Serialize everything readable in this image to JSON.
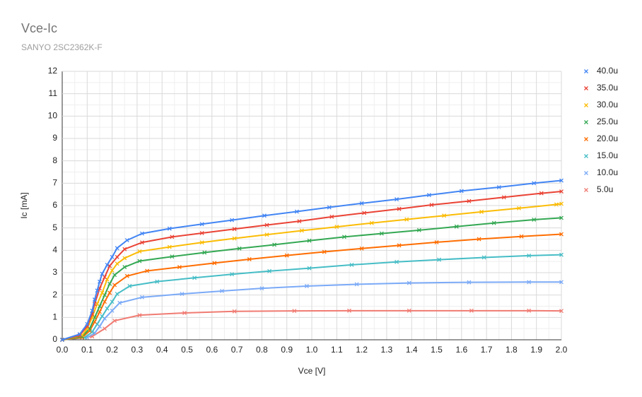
{
  "chart_data": {
    "type": "scatter",
    "title": "Vce-Ic",
    "subtitle": "SANYO 2SC2362K-F",
    "x_label": "Vce [V]",
    "y_label": "Ic [mA]",
    "xlim": [
      0,
      2
    ],
    "ylim": [
      0,
      12
    ],
    "xticks": [
      {
        "value": 0,
        "label": "0.0"
      },
      0.1,
      0.2,
      0.3,
      0.4,
      0.5,
      0.6,
      0.7,
      0.8,
      0.9,
      {
        "value": 1,
        "label": "1.0"
      },
      1.1,
      1.2,
      1.3,
      1.4,
      1.5,
      1.6,
      1.7,
      1.8,
      1.9,
      {
        "value": 2,
        "label": "2.0"
      }
    ],
    "yticks": [
      0,
      1,
      2,
      3,
      4,
      5,
      6,
      7,
      8,
      9,
      10,
      11,
      12
    ],
    "grid": true,
    "minor_grid": true,
    "legend": "right",
    "series": [
      {
        "name": "40.0u",
        "color": "#4285f4",
        "x": [
          0,
          0.07,
          0.1,
          0.12,
          0.13,
          0.14,
          0.15,
          0.16,
          0.18,
          0.2,
          0.22,
          0.26,
          0.32,
          0.43,
          0.56,
          0.68,
          0.81,
          0.94,
          1.07,
          1.2,
          1.34,
          1.47,
          1.6,
          1.75,
          1.89,
          2.0
        ],
        "values": [
          0,
          0.25,
          0.7,
          1.3,
          1.8,
          2.2,
          2.6,
          2.95,
          3.35,
          3.7,
          4.1,
          4.45,
          4.75,
          4.97,
          5.17,
          5.35,
          5.55,
          5.73,
          5.92,
          6.1,
          6.28,
          6.47,
          6.65,
          6.82,
          7.0,
          7.12
        ]
      },
      {
        "name": "35.0u",
        "color": "#ea4335",
        "x": [
          0,
          0.07,
          0.1,
          0.12,
          0.13,
          0.15,
          0.17,
          0.19,
          0.22,
          0.25,
          0.32,
          0.44,
          0.56,
          0.69,
          0.82,
          0.95,
          1.08,
          1.21,
          1.35,
          1.48,
          1.63,
          1.77,
          1.92,
          2.0
        ],
        "values": [
          0,
          0.2,
          0.6,
          1.15,
          1.6,
          2.3,
          2.8,
          3.3,
          3.7,
          4.05,
          4.35,
          4.6,
          4.77,
          4.95,
          5.13,
          5.3,
          5.5,
          5.67,
          5.85,
          6.03,
          6.2,
          6.37,
          6.55,
          6.63
        ]
      },
      {
        "name": "30.0u",
        "color": "#fbbc04",
        "x": [
          0,
          0.08,
          0.1,
          0.12,
          0.14,
          0.16,
          0.18,
          0.2,
          0.22,
          0.25,
          0.31,
          0.43,
          0.56,
          0.69,
          0.82,
          0.96,
          1.1,
          1.24,
          1.38,
          1.53,
          1.68,
          1.83,
          1.98,
          2.0
        ],
        "values": [
          0,
          0.2,
          0.5,
          1.0,
          1.6,
          2.1,
          2.7,
          3.1,
          3.4,
          3.65,
          3.95,
          4.15,
          4.35,
          4.53,
          4.7,
          4.88,
          5.05,
          5.22,
          5.38,
          5.55,
          5.72,
          5.88,
          6.05,
          6.08
        ]
      },
      {
        "name": "25.0u",
        "color": "#34a853",
        "x": [
          0,
          0.08,
          0.11,
          0.13,
          0.15,
          0.17,
          0.19,
          0.21,
          0.25,
          0.31,
          0.44,
          0.57,
          0.71,
          0.85,
          0.99,
          1.13,
          1.28,
          1.43,
          1.58,
          1.73,
          1.89,
          2.0
        ],
        "values": [
          0,
          0.15,
          0.5,
          1.0,
          1.5,
          2.0,
          2.5,
          2.9,
          3.25,
          3.52,
          3.72,
          3.9,
          4.08,
          4.25,
          4.43,
          4.6,
          4.75,
          4.9,
          5.06,
          5.22,
          5.37,
          5.45
        ]
      },
      {
        "name": "20.0u",
        "color": "#ff6d01",
        "x": [
          0,
          0.08,
          0.11,
          0.13,
          0.15,
          0.17,
          0.19,
          0.21,
          0.26,
          0.34,
          0.47,
          0.61,
          0.75,
          0.9,
          1.05,
          1.2,
          1.35,
          1.5,
          1.67,
          1.84,
          2.0
        ],
        "values": [
          0,
          0.1,
          0.4,
          0.8,
          1.25,
          1.7,
          2.1,
          2.45,
          2.85,
          3.08,
          3.25,
          3.43,
          3.6,
          3.77,
          3.93,
          4.08,
          4.22,
          4.36,
          4.5,
          4.62,
          4.72
        ]
      },
      {
        "name": "15.0u",
        "color": "#46bdc6",
        "x": [
          0,
          0.09,
          0.12,
          0.14,
          0.16,
          0.18,
          0.2,
          0.22,
          0.27,
          0.38,
          0.53,
          0.68,
          0.83,
          0.99,
          1.16,
          1.34,
          1.51,
          1.69,
          1.87,
          2.0
        ],
        "values": [
          0,
          0.1,
          0.35,
          0.7,
          1.05,
          1.4,
          1.7,
          2.05,
          2.4,
          2.6,
          2.77,
          2.93,
          3.07,
          3.2,
          3.35,
          3.48,
          3.58,
          3.68,
          3.76,
          3.8
        ]
      },
      {
        "name": "10.0u",
        "color": "#7baaf7",
        "x": [
          0,
          0.1,
          0.13,
          0.15,
          0.17,
          0.2,
          0.23,
          0.32,
          0.48,
          0.64,
          0.8,
          0.98,
          1.18,
          1.39,
          1.63,
          1.87,
          2.0
        ],
        "values": [
          0,
          0.1,
          0.3,
          0.6,
          0.95,
          1.3,
          1.65,
          1.9,
          2.05,
          2.18,
          2.3,
          2.4,
          2.48,
          2.54,
          2.57,
          2.58,
          2.58
        ]
      },
      {
        "name": "5.0u",
        "color": "#f07b72",
        "x": [
          0,
          0.12,
          0.17,
          0.21,
          0.31,
          0.49,
          0.69,
          0.93,
          1.15,
          1.39,
          1.64,
          1.87,
          2.0
        ],
        "values": [
          0,
          0.15,
          0.5,
          0.85,
          1.1,
          1.2,
          1.27,
          1.29,
          1.3,
          1.3,
          1.3,
          1.3,
          1.29
        ]
      }
    ]
  }
}
